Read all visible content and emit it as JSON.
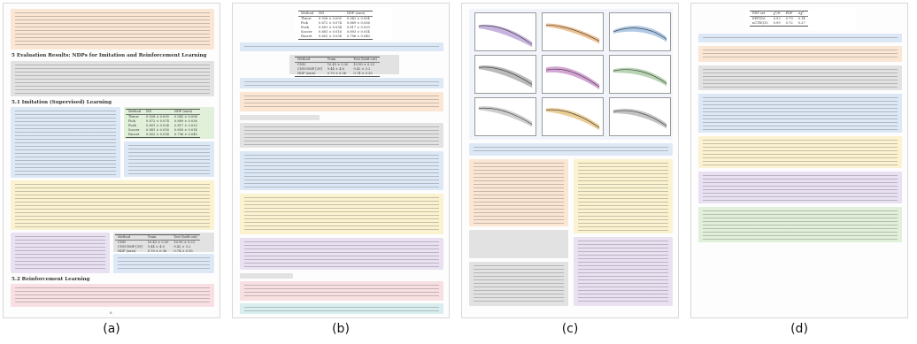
{
  "panel_labels": [
    "(a)",
    "(b)",
    "(c)",
    "(d)"
  ],
  "panel_a": {
    "section_heading": "5   Evaluation Results: NDPs for Imitation and Reinforcement Learning",
    "subsection_1": "5.1   Imitation (Supervised) Learning",
    "subsection_2": "5.2   Reinforcement Learning",
    "table_1": {
      "headers": [
        "Method",
        "NN",
        "NDP (ours)"
      ],
      "rows": [
        [
          "Throw",
          "0.928 ± 0.005",
          "0.942 ± 0.004"
        ],
        [
          "Pick",
          "0.872 ± 0.074",
          "0.889 ± 0.036"
        ],
        [
          "Push",
          "0.801 ± 0.034",
          "0.817 ± 0.033"
        ],
        [
          "Soccer",
          "0.881 ± 0.016",
          "0.893 ± 0.014"
        ],
        [
          "Faucet",
          "0.652 ± 0.034",
          "0.796 ± 0.040"
        ]
      ]
    },
    "table_2": {
      "headers": [
        "Method",
        "Train",
        "Test (held-out)"
      ],
      "rows": [
        [
          "CNN",
          "10.43 ± 0.30",
          "10.90 ± 0.23"
        ],
        [
          "CNN-DMP [39]",
          "9.44 ± 4.8",
          "9.42 ± 3.2"
        ],
        [
          "NDP (ours)",
          "0.70 ± 0.36",
          "0.74 ± 0.35"
        ]
      ]
    },
    "page_number": "8"
  },
  "panel_b": {
    "table_1": {
      "headers": [
        "Method",
        "NN",
        "NDP (ours)"
      ],
      "rows": [
        [
          "Throw",
          "0.928 ± 0.005",
          "0.942 ± 0.004"
        ],
        [
          "Pick",
          "0.872 ± 0.074",
          "0.889 ± 0.036"
        ],
        [
          "Push",
          "0.801 ± 0.034",
          "0.817 ± 0.033"
        ],
        [
          "Soccer",
          "0.881 ± 0.016",
          "0.893 ± 0.014"
        ],
        [
          "Faucet",
          "0.652 ± 0.034",
          "0.796 ± 0.040"
        ]
      ]
    },
    "table_2": {
      "headers": [
        "Method",
        "Train",
        "Test (held-out)"
      ],
      "rows": [
        [
          "CNN",
          "10.43 ± 0.30",
          "10.90 ± 0.23"
        ],
        [
          "CNN-DMP [39]",
          "9.44 ± 4.8",
          "9.42 ± 3.2"
        ],
        [
          "NDP (ours)",
          "0.70 ± 0.36",
          "0.74 ± 0.35"
        ]
      ]
    }
  },
  "panel_c": {
    "page_number": ""
  },
  "panel_d": {
    "table_1": {
      "headers": [
        "PDF set",
        "χ²/N",
        "PDF",
        "Δχ²"
      ],
      "rows": [
        [
          "EPPS16",
          "0.93",
          "0.79",
          "0.14"
        ],
        [
          "nCTEQ15",
          "0.99",
          "0.72",
          "0.27"
        ]
      ]
    }
  },
  "colors": {
    "orange": "#fbe6d3",
    "blue": "#dde8f6",
    "grey": "#e2e2e2",
    "green": "#e1f0d9",
    "pink": "#f8dfe2",
    "yellow": "#fbf2d0",
    "purple": "#e9e1f2",
    "teal": "#d9eeee"
  }
}
